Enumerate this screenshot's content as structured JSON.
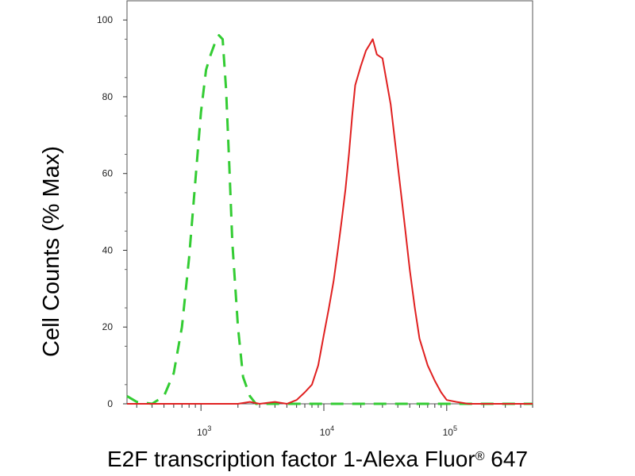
{
  "chart_data": {
    "type": "line",
    "title": "",
    "xlabel": "E2F transcription factor 1-Alexa Fluor",
    "xlabel_superscript": "®",
    "xlabel_suffix": " 647",
    "ylabel": "Cell Counts (% Max)",
    "x_scale": "log",
    "xlim": [
      250,
      500000
    ],
    "ylim": [
      0,
      105
    ],
    "y_ticks": [
      "0",
      "20",
      "40",
      "60",
      "80",
      "100"
    ],
    "x_ticks": [
      {
        "base": "10",
        "exp": "3"
      },
      {
        "base": "10",
        "exp": "4"
      },
      {
        "base": "10",
        "exp": "5"
      }
    ],
    "grid": false,
    "series": [
      {
        "style": "dashed",
        "color": "#33cc33",
        "x": [
          250,
          300,
          400,
          500,
          600,
          700,
          800,
          900,
          1000,
          1100,
          1200,
          1300,
          1400,
          1500,
          1600,
          1700,
          1800,
          2000,
          2200,
          2500,
          2800,
          3000,
          3500,
          5000,
          10000,
          50000,
          100000,
          500000
        ],
        "y": [
          2,
          0.5,
          0,
          2,
          8,
          20,
          38,
          58,
          76,
          87,
          91,
          94,
          96,
          95,
          82,
          62,
          42,
          20,
          7,
          2,
          0,
          0,
          0,
          0,
          0,
          0,
          0,
          0
        ]
      },
      {
        "style": "solid",
        "color": "#e02020",
        "x": [
          250,
          2000,
          2500,
          3000,
          4000,
          5000,
          6000,
          7000,
          8000,
          9000,
          10000,
          11000,
          12000,
          13000,
          14000,
          15000,
          16000,
          17000,
          18000,
          20000,
          22000,
          24000,
          25000,
          27000,
          30000,
          32000,
          35000,
          40000,
          45000,
          50000,
          55000,
          60000,
          70000,
          80000,
          90000,
          100000,
          120000,
          150000,
          200000,
          500000
        ],
        "y": [
          0,
          0,
          0.5,
          0,
          0.5,
          0,
          1,
          3,
          5,
          10,
          18,
          25,
          32,
          40,
          48,
          56,
          65,
          75,
          83,
          88,
          92,
          94,
          95,
          91,
          90,
          85,
          78,
          62,
          48,
          35,
          25,
          17,
          10,
          6,
          3,
          1,
          0.5,
          0,
          0,
          0
        ]
      }
    ]
  }
}
